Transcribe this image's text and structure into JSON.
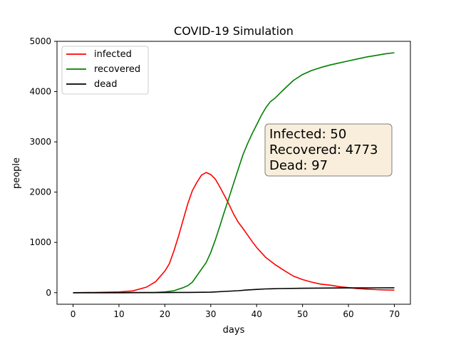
{
  "chart_data": {
    "type": "line",
    "title": "COVID-19 Simulation",
    "xlabel": "days",
    "ylabel": "people",
    "xlim": [
      -3.5,
      73.5
    ],
    "ylim": [
      -230,
      5000
    ],
    "xticks": [
      0,
      10,
      20,
      30,
      40,
      50,
      60,
      70
    ],
    "yticks": [
      0,
      1000,
      2000,
      3000,
      4000,
      5000
    ],
    "grid": false,
    "legend_position": "top-left",
    "series": [
      {
        "name": "infected",
        "color": "#ff0000",
        "x": [
          0,
          5,
          10,
          13,
          16,
          18,
          20,
          21,
          22,
          23,
          24,
          25,
          26,
          27,
          28,
          29,
          30,
          31,
          32,
          33,
          34,
          35,
          36,
          37,
          38,
          39,
          40,
          42,
          44,
          46,
          48,
          50,
          52,
          54,
          56,
          58,
          60,
          62,
          64,
          66,
          68,
          70
        ],
        "y": [
          0,
          5,
          15,
          35,
          110,
          220,
          430,
          580,
          840,
          1130,
          1450,
          1770,
          2030,
          2200,
          2340,
          2390,
          2350,
          2260,
          2100,
          1930,
          1750,
          1560,
          1400,
          1280,
          1150,
          1020,
          900,
          700,
          560,
          440,
          330,
          260,
          210,
          170,
          150,
          120,
          100,
          80,
          70,
          60,
          55,
          50
        ]
      },
      {
        "name": "recovered",
        "color": "#008000",
        "x": [
          0,
          10,
          18,
          20,
          22,
          24,
          25,
          26,
          27,
          28,
          29,
          30,
          31,
          32,
          33,
          34,
          35,
          36,
          37,
          38,
          39,
          40,
          41,
          42,
          43,
          44,
          46,
          48,
          50,
          52,
          54,
          56,
          58,
          60,
          62,
          64,
          66,
          68,
          70
        ],
        "y": [
          0,
          0,
          5,
          15,
          40,
          100,
          140,
          210,
          340,
          470,
          600,
          800,
          1050,
          1330,
          1620,
          1900,
          2180,
          2460,
          2740,
          2960,
          3160,
          3340,
          3520,
          3680,
          3800,
          3870,
          4050,
          4220,
          4340,
          4420,
          4480,
          4530,
          4570,
          4610,
          4650,
          4690,
          4720,
          4750,
          4773
        ]
      },
      {
        "name": "dead",
        "color": "#000000",
        "x": [
          0,
          10,
          20,
          25,
          30,
          33,
          36,
          38,
          40,
          42,
          45,
          50,
          55,
          60,
          65,
          70
        ],
        "y": [
          0,
          0,
          2,
          5,
          10,
          25,
          40,
          55,
          65,
          75,
          82,
          88,
          92,
          95,
          96,
          97
        ]
      }
    ],
    "annotation": {
      "lines": [
        "Infected: 50",
        "Recovered: 4773",
        "Dead: 97"
      ],
      "box_fill": "#f8eedb",
      "box_stroke": "#7f7f7f"
    }
  }
}
